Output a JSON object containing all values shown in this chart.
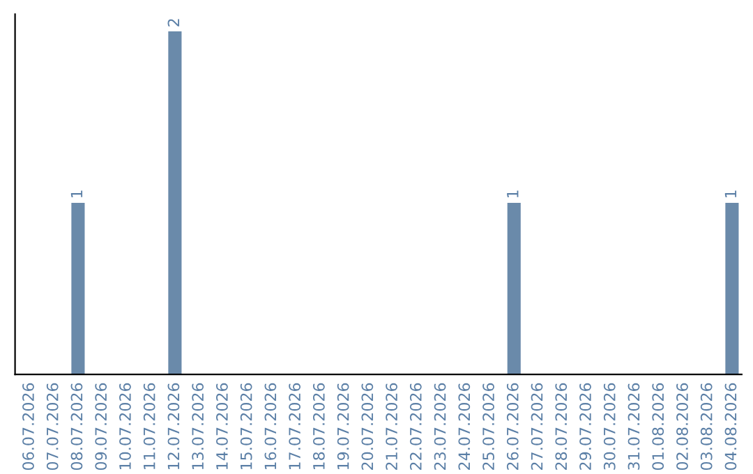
{
  "chart_data": {
    "type": "bar",
    "categories": [
      "06.07.2026",
      "07.07.2026",
      "08.07.2026",
      "09.07.2026",
      "10.07.2026",
      "11.07.2026",
      "12.07.2026",
      "13.07.2026",
      "14.07.2026",
      "15.07.2026",
      "16.07.2026",
      "17.07.2026",
      "18.07.2026",
      "19.07.2026",
      "20.07.2026",
      "21.07.2026",
      "22.07.2026",
      "23.07.2026",
      "24.07.2026",
      "25.07.2026",
      "26.07.2026",
      "27.07.2026",
      "28.07.2026",
      "29.07.2026",
      "30.07.2026",
      "31.07.2026",
      "01.08.2026",
      "02.08.2026",
      "03.08.2026",
      "04.08.2026"
    ],
    "values": [
      0,
      0,
      1,
      0,
      0,
      0,
      2,
      0,
      0,
      0,
      0,
      0,
      0,
      0,
      0,
      0,
      0,
      0,
      0,
      0,
      1,
      0,
      0,
      0,
      0,
      0,
      0,
      0,
      0,
      1
    ],
    "value_labels": [
      null,
      null,
      "1",
      null,
      null,
      null,
      "2",
      null,
      null,
      null,
      null,
      null,
      null,
      null,
      null,
      null,
      null,
      null,
      null,
      null,
      "1",
      null,
      null,
      null,
      null,
      null,
      null,
      null,
      null,
      "1"
    ],
    "color": "#6a8aaa",
    "tick_labels": "x",
    "grid": false,
    "legend": false
  }
}
